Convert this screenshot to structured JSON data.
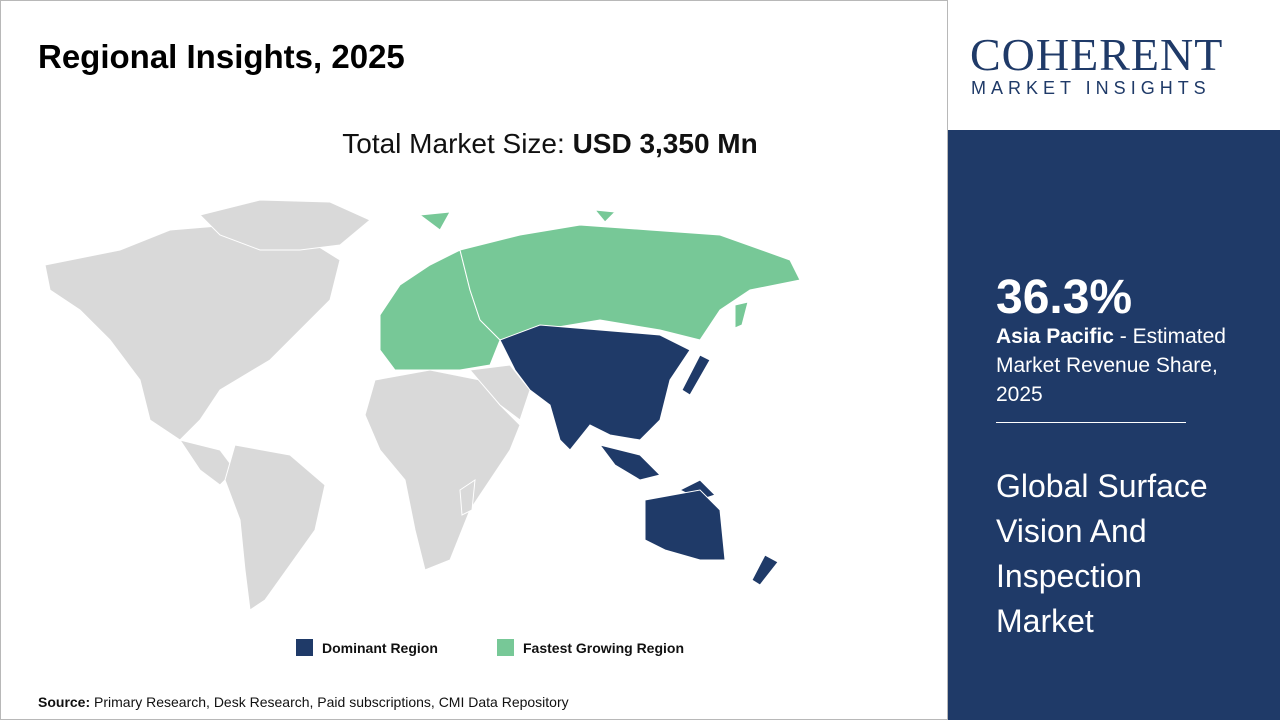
{
  "header": {
    "title": "Regional Insights, 2025"
  },
  "market_size": {
    "label": "Total Market Size:",
    "value": "USD 3,350 Mn"
  },
  "logo": {
    "name": "COHERENT",
    "tagline": "MARKET INSIGHTS"
  },
  "highlight": {
    "share": "36.3%",
    "region": "Asia Pacific",
    "description": " - Estimated Market Revenue Share, 2025"
  },
  "market_name": "Global Surface Vision And Inspection Market",
  "legend": {
    "dominant": "Dominant Region",
    "fastest": "Fastest Growing Region"
  },
  "source": {
    "label": "Source:",
    "text": " Primary Research, Desk Research, Paid subscriptions, CMI Data Repository"
  }
}
